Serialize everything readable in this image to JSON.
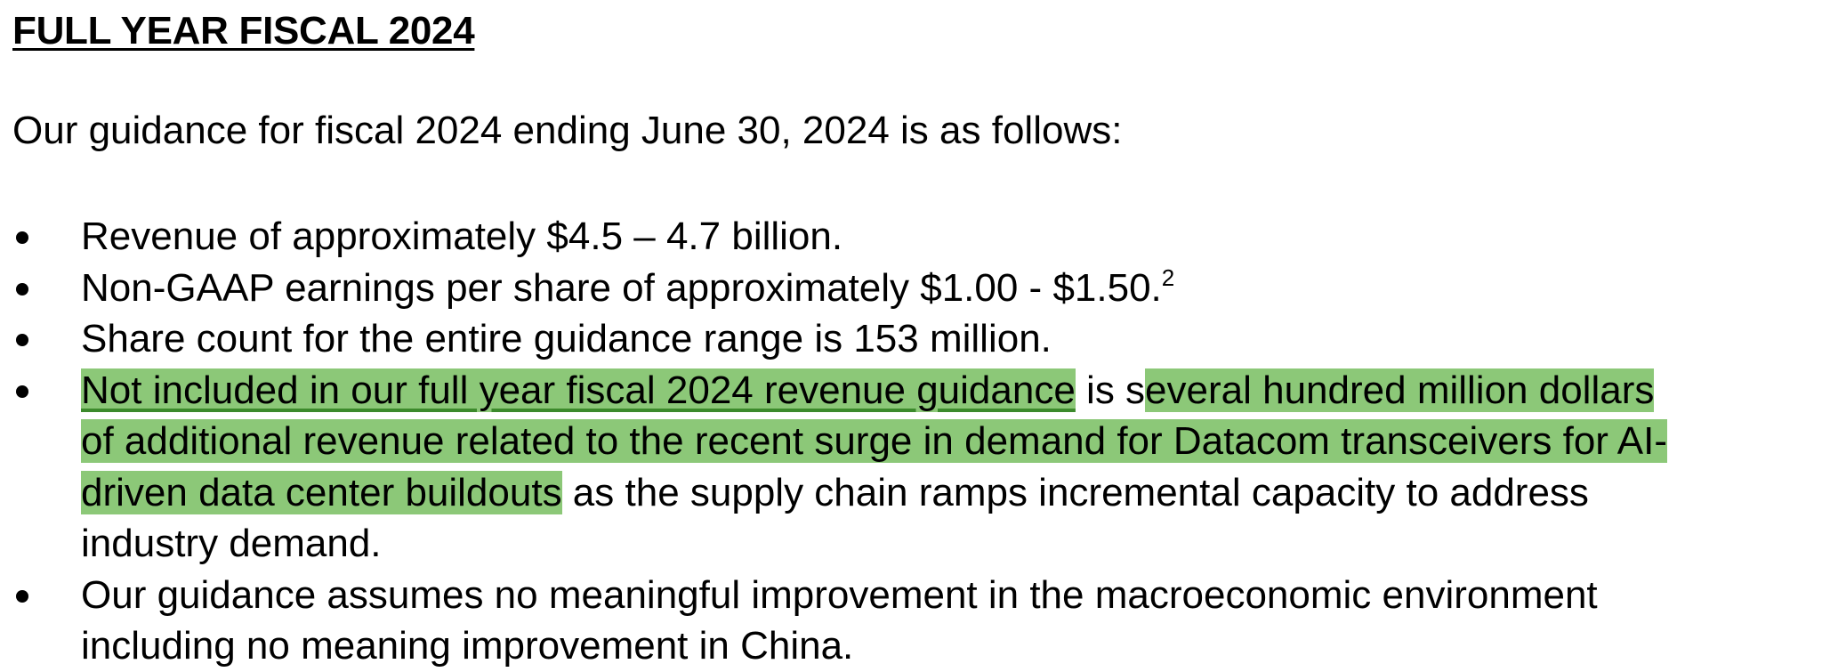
{
  "heading": "FULL YEAR FISCAL 2024",
  "intro": "Our guidance for fiscal 2024 ending June 30, 2024 is as follows:",
  "colors": {
    "highlight": "#8cc878",
    "highlight_underline": "#3c8a2c",
    "text": "#000000"
  },
  "bullets": [
    {
      "text": "Revenue of approximately $4.5 – 4.7 billion."
    },
    {
      "text": "Non-GAAP earnings per share of approximately $1.00 - $1.50.",
      "footnote": "2"
    },
    {
      "text": "Share count for the entire guidance range is 153 million."
    },
    {
      "part1_highlight_underlined": "Not included in our full year fiscal 2024 revenue guidance",
      "part2_plain": " is s",
      "part3_highlight_line1": "everal hundred million dollars",
      "part3_highlight_line2": "of additional revenue related to the recent surge in demand for Datacom transceivers for AI-",
      "part3_highlight_line3": "driven data center buildouts",
      "part4_plain_line3": " as the supply chain ramps incremental capacity to address",
      "part4_plain_line4": "industry demand."
    },
    {
      "line1": "Our guidance assumes no meaningful improvement in the macroeconomic environment",
      "line2": "including no meaning improvement in China."
    }
  ]
}
